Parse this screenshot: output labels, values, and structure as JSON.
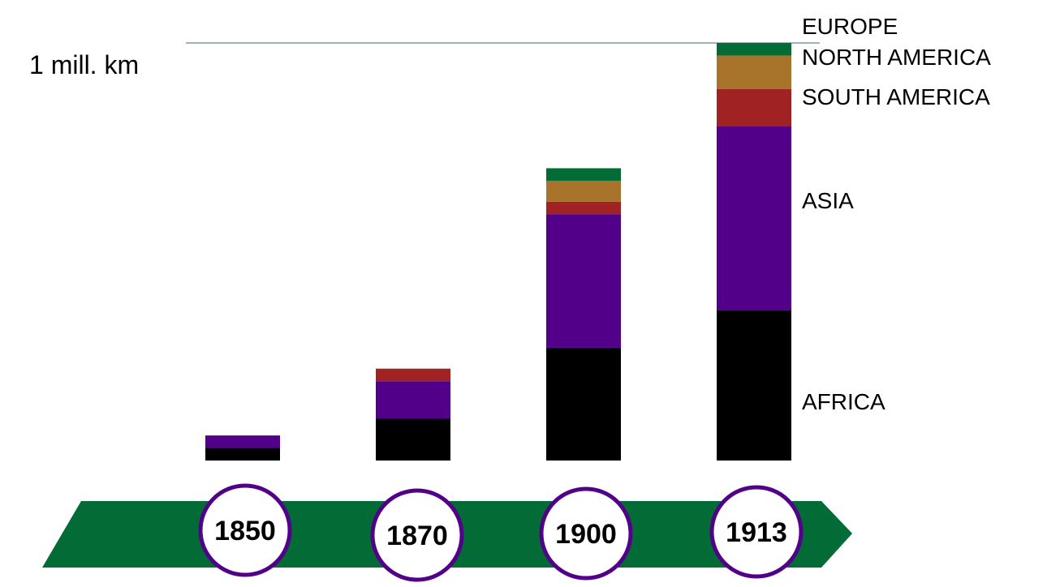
{
  "chart_data": {
    "type": "bar",
    "stacked": true,
    "title": "",
    "xlabel": "",
    "ylabel": "",
    "unit": "mill. km",
    "categories": [
      "1850",
      "1870",
      "1900",
      "1913"
    ],
    "ylim": [
      0,
      1.05
    ],
    "reference_line": {
      "value": 1,
      "label": "1 mill. km",
      "color": "#7f9c9a"
    },
    "grid": false,
    "series": [
      {
        "name": "EUROPE",
        "color": "#000000",
        "values": [
          0.03,
          0.1,
          0.27,
          0.36
        ]
      },
      {
        "name": "NORTH AMERICA",
        "color": "#52008a",
        "values": [
          0.03,
          0.09,
          0.32,
          0.44
        ]
      },
      {
        "name": "SOUTH AMERICA",
        "color": "#a02222",
        "values": [
          0.0,
          0.03,
          0.03,
          0.09
        ]
      },
      {
        "name": "ASIA",
        "color": "#a8732a",
        "values": [
          0.0,
          0.0,
          0.05,
          0.08
        ]
      },
      {
        "name": "AFRICA",
        "color": "#036b36",
        "values": [
          0.0,
          0.0,
          0.03,
          0.03
        ]
      }
    ],
    "legend_placement": "right of last bar"
  },
  "timeline": {
    "arrow_color": "#036b36",
    "circle_border_color": "#52008a"
  }
}
